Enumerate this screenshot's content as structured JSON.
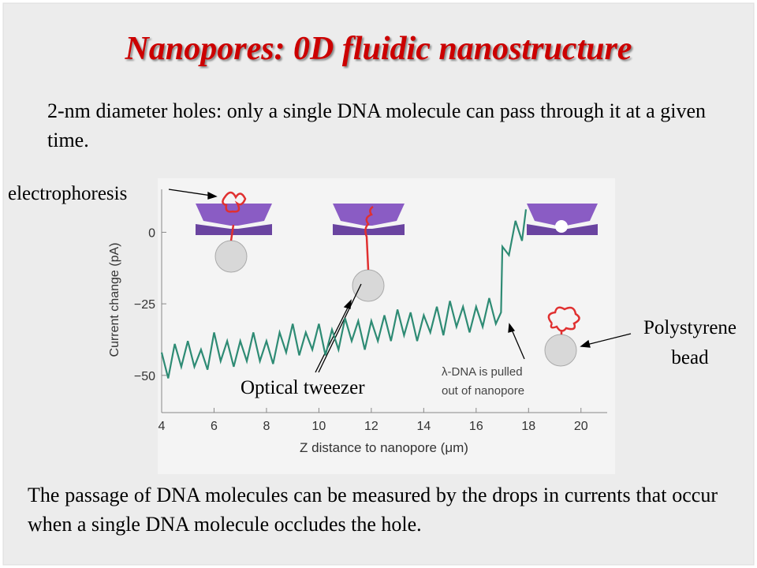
{
  "title": "Nanopores: 0D fluidic nanostructure",
  "intro": "2-nm diameter holes: only a single DNA molecule can pass through it at a given time.",
  "figure_labels": {
    "electrophoresis": "electrophoresis",
    "optical_tweezer": "Optical tweezer",
    "bead": [
      "Polystyrene",
      "bead"
    ]
  },
  "footer": "The passage of DNA molecules can be measured by the drops in currents that occur when a single DNA molecule occludes the hole.",
  "chart_data": {
    "type": "line",
    "x_label": "Z distance to nanopore (μm)",
    "y_label": "Current change (pA)",
    "annotation": [
      "λ-DNA is pulled",
      "out of nanopore"
    ],
    "x": [
      4,
      4.25,
      4.5,
      4.75,
      5,
      5.25,
      5.5,
      5.75,
      6,
      6.25,
      6.5,
      6.75,
      7,
      7.25,
      7.5,
      7.75,
      8,
      8.25,
      8.5,
      8.75,
      9,
      9.25,
      9.5,
      9.75,
      10,
      10.25,
      10.5,
      10.75,
      11,
      11.25,
      11.5,
      11.75,
      12,
      12.25,
      12.5,
      12.75,
      13,
      13.25,
      13.5,
      13.75,
      14,
      14.25,
      14.5,
      14.75,
      15,
      15.25,
      15.5,
      15.75,
      16,
      16.25,
      16.5,
      16.75,
      16.95,
      17,
      17.25,
      17.5,
      17.75,
      17.9
    ],
    "series": [
      {
        "name": "Current change",
        "color": "#2e8b74",
        "values": [
          -42,
          -51,
          -39,
          -47,
          -38,
          -47,
          -41,
          -48,
          -35,
          -45,
          -38,
          -47,
          -38,
          -45,
          -35,
          -45,
          -38,
          -46,
          -35,
          -42,
          -32,
          -43,
          -35,
          -41,
          -32,
          -43,
          -34,
          -41,
          -30,
          -38,
          -31,
          -41,
          -31,
          -38,
          -29,
          -38,
          -27,
          -36,
          -28,
          -38,
          -29,
          -35,
          -26,
          -36,
          -24,
          -33,
          -26,
          -35,
          -26,
          -33,
          -23,
          -32,
          -28,
          -5,
          -8,
          4,
          -3,
          8
        ]
      }
    ],
    "xlim": [
      4,
      21
    ],
    "ylim": [
      -63,
      15
    ],
    "xticks": [
      4,
      6,
      8,
      10,
      12,
      14,
      16,
      18,
      20
    ],
    "yticks": [
      {
        "value": 0,
        "label": "0"
      },
      {
        "value": -25,
        "label": "−25"
      },
      {
        "value": -50,
        "label": "−50"
      }
    ]
  }
}
